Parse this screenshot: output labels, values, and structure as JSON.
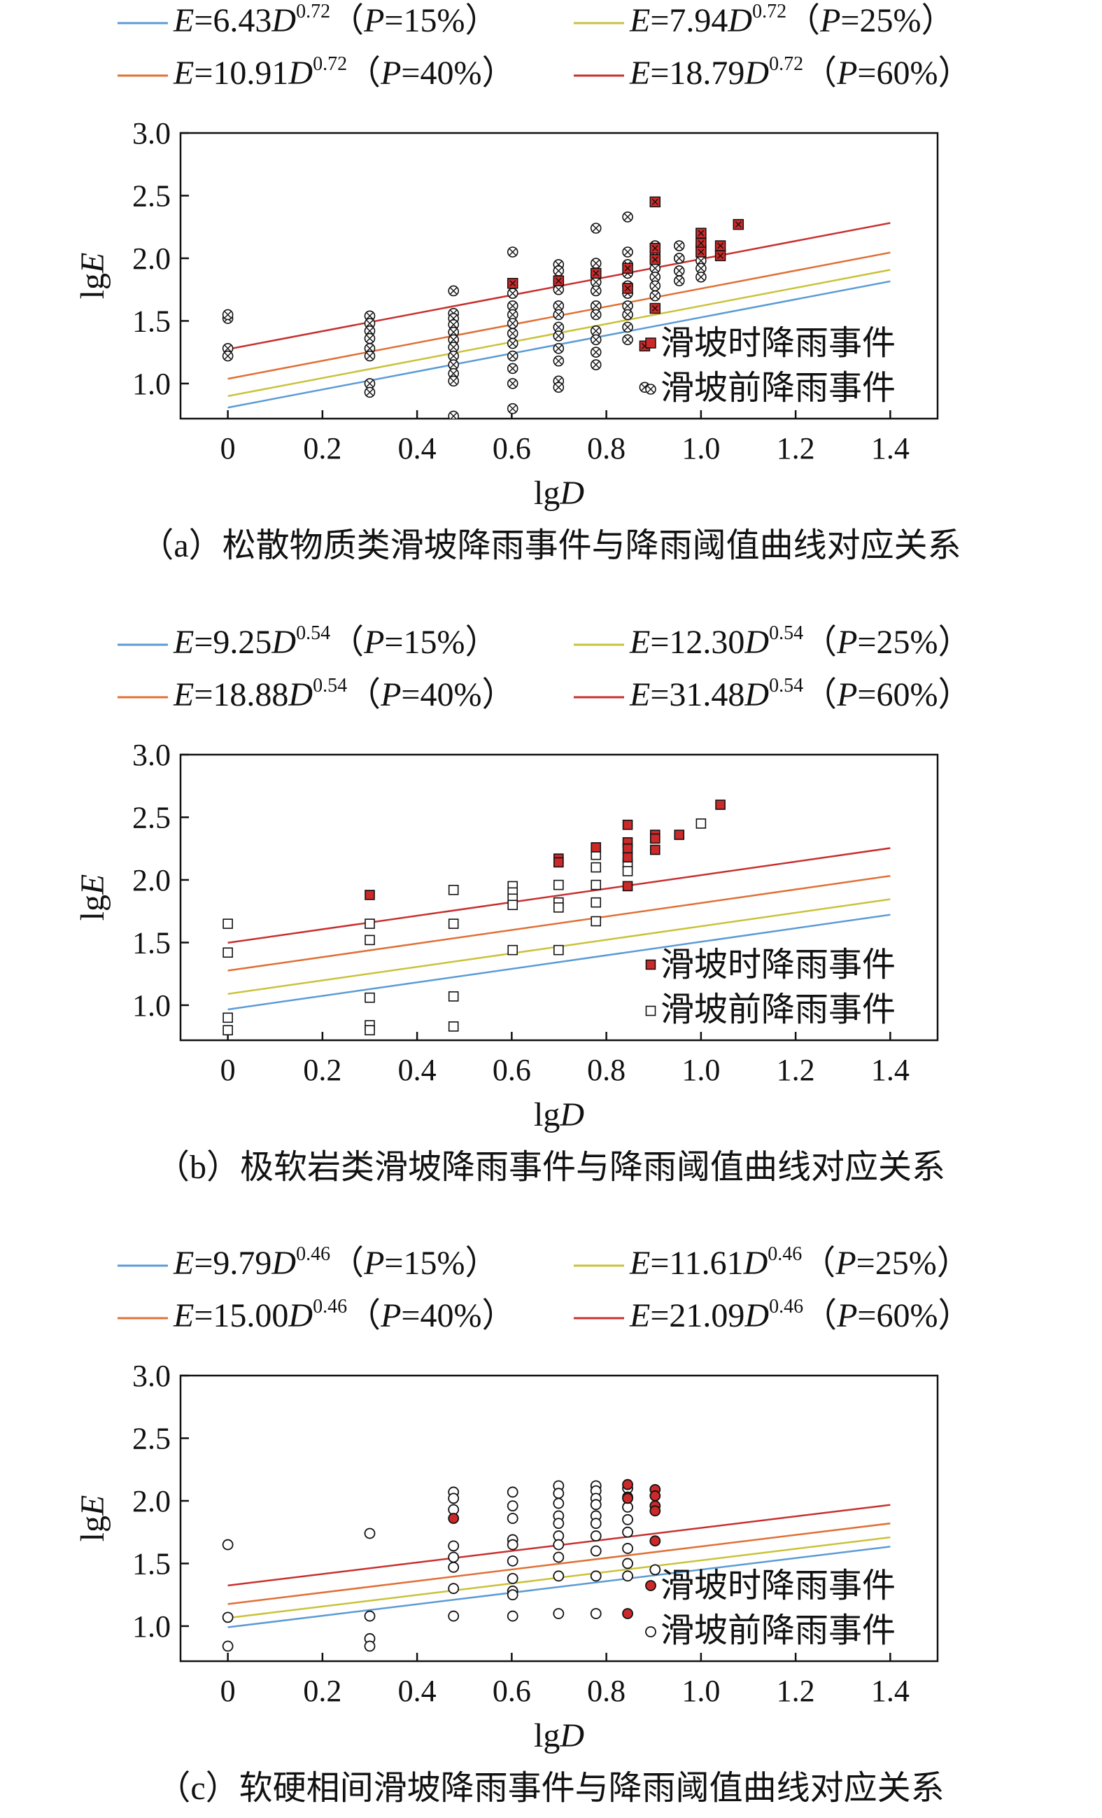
{
  "colors": {
    "p15": "#5b9bd5",
    "p25": "#c9c23a",
    "p40": "#e07035",
    "p60": "#c8302f",
    "during_fill": "#cc2a2a",
    "axis": "#111111"
  },
  "axes": {
    "xlabel_pre": "lg",
    "xlabel_var": "D",
    "ylabel_pre": "lg",
    "ylabel_var": "E"
  },
  "legend_points": {
    "during": "滑坡时降雨事件",
    "before": "滑坡前降雨事件"
  },
  "chart_data": [
    {
      "id": "a",
      "type": "scatter",
      "marker": "x-square",
      "caption": "（a）松散物质类滑坡降雨事件与降雨阈值曲线对应关系",
      "xlim": [
        -0.1,
        1.5
      ],
      "ylim": [
        0.72,
        3.0
      ],
      "x_ticks": [
        "0",
        "0.2",
        "0.4",
        "0.6",
        "0.8",
        "1.0",
        "1.2",
        "1.4"
      ],
      "y_ticks": [
        "1.0",
        "1.5",
        "2.0",
        "2.5",
        "3.0"
      ],
      "thresholds": [
        {
          "a_text": "6.43",
          "b_text": "0.72",
          "p": "15%",
          "color_key": "p15",
          "a": 6.43,
          "b": 0.72
        },
        {
          "a_text": "7.94",
          "b_text": "0.72",
          "p": "25%",
          "color_key": "p25",
          "a": 7.94,
          "b": 0.72
        },
        {
          "a_text": "10.91",
          "b_text": "0.72",
          "p": "40%",
          "color_key": "p40",
          "a": 10.91,
          "b": 0.72
        },
        {
          "a_text": "18.79",
          "b_text": "0.72",
          "p": "60%",
          "color_key": "p60",
          "a": 18.79,
          "b": 0.72
        }
      ],
      "before": [
        [
          0,
          1.52
        ],
        [
          0,
          1.55
        ],
        [
          0,
          1.28
        ],
        [
          0,
          1.22
        ],
        [
          0.3,
          1.54
        ],
        [
          0.3,
          1.48
        ],
        [
          0.3,
          1.42
        ],
        [
          0.3,
          1.36
        ],
        [
          0.3,
          1.28
        ],
        [
          0.3,
          1.22
        ],
        [
          0.3,
          1.0
        ],
        [
          0.3,
          0.93
        ],
        [
          0.477,
          1.74
        ],
        [
          0.477,
          1.56
        ],
        [
          0.477,
          1.52
        ],
        [
          0.477,
          1.47
        ],
        [
          0.477,
          1.41
        ],
        [
          0.477,
          1.35
        ],
        [
          0.477,
          1.29
        ],
        [
          0.477,
          1.22
        ],
        [
          0.477,
          1.15
        ],
        [
          0.477,
          1.08
        ],
        [
          0.477,
          1.02
        ],
        [
          0.477,
          0.74
        ],
        [
          0.602,
          2.05
        ],
        [
          0.602,
          1.72
        ],
        [
          0.602,
          1.62
        ],
        [
          0.602,
          1.55
        ],
        [
          0.602,
          1.48
        ],
        [
          0.602,
          1.4
        ],
        [
          0.602,
          1.32
        ],
        [
          0.602,
          1.22
        ],
        [
          0.602,
          1.12
        ],
        [
          0.602,
          1.0
        ],
        [
          0.602,
          0.8
        ],
        [
          0.699,
          1.95
        ],
        [
          0.699,
          1.9
        ],
        [
          0.699,
          1.82
        ],
        [
          0.699,
          1.75
        ],
        [
          0.699,
          1.62
        ],
        [
          0.699,
          1.55
        ],
        [
          0.699,
          1.45
        ],
        [
          0.699,
          1.38
        ],
        [
          0.699,
          1.28
        ],
        [
          0.699,
          1.18
        ],
        [
          0.699,
          1.02
        ],
        [
          0.699,
          0.97
        ],
        [
          0.778,
          2.24
        ],
        [
          0.778,
          1.96
        ],
        [
          0.778,
          1.88
        ],
        [
          0.778,
          1.81
        ],
        [
          0.778,
          1.74
        ],
        [
          0.778,
          1.62
        ],
        [
          0.778,
          1.55
        ],
        [
          0.778,
          1.42
        ],
        [
          0.778,
          1.35
        ],
        [
          0.778,
          1.25
        ],
        [
          0.778,
          1.15
        ],
        [
          0.845,
          2.33
        ],
        [
          0.845,
          2.05
        ],
        [
          0.845,
          1.95
        ],
        [
          0.845,
          1.88
        ],
        [
          0.845,
          1.78
        ],
        [
          0.845,
          1.72
        ],
        [
          0.845,
          1.62
        ],
        [
          0.845,
          1.55
        ],
        [
          0.845,
          1.45
        ],
        [
          0.845,
          1.35
        ],
        [
          0.881,
          0.97
        ],
        [
          0.903,
          2.1
        ],
        [
          0.903,
          2.05
        ],
        [
          0.903,
          1.98
        ],
        [
          0.903,
          1.92
        ],
        [
          0.903,
          1.85
        ],
        [
          0.903,
          1.78
        ],
        [
          0.903,
          1.7
        ],
        [
          0.954,
          2.1
        ],
        [
          0.954,
          2.0
        ],
        [
          0.954,
          1.9
        ],
        [
          0.954,
          1.82
        ],
        [
          1.0,
          2.1
        ],
        [
          1.0,
          1.98
        ],
        [
          1.0,
          1.92
        ],
        [
          1.0,
          1.85
        ]
      ],
      "during": [
        [
          0.602,
          1.8
        ],
        [
          0.699,
          1.82
        ],
        [
          0.778,
          1.88
        ],
        [
          0.845,
          1.92
        ],
        [
          0.845,
          1.76
        ],
        [
          0.881,
          1.3
        ],
        [
          0.903,
          2.45
        ],
        [
          0.903,
          2.08
        ],
        [
          0.903,
          1.99
        ],
        [
          0.903,
          1.6
        ],
        [
          1.0,
          2.2
        ],
        [
          1.0,
          2.12
        ],
        [
          1.0,
          2.05
        ],
        [
          1.041,
          2.1
        ],
        [
          1.041,
          2.02
        ],
        [
          1.079,
          2.27
        ]
      ]
    },
    {
      "id": "b",
      "type": "scatter",
      "marker": "square",
      "caption": "（b）极软岩类滑坡降雨事件与降雨阈值曲线对应关系",
      "xlim": [
        -0.1,
        1.5
      ],
      "ylim": [
        0.72,
        3.0
      ],
      "x_ticks": [
        "0",
        "0.2",
        "0.4",
        "0.6",
        "0.8",
        "1.0",
        "1.2",
        "1.4"
      ],
      "y_ticks": [
        "1.0",
        "1.5",
        "2.0",
        "2.5",
        "3.0"
      ],
      "thresholds": [
        {
          "a_text": "9.25",
          "b_text": "0.54",
          "p": "15%",
          "color_key": "p15",
          "a": 9.25,
          "b": 0.54
        },
        {
          "a_text": "12.30",
          "b_text": "0.54",
          "p": "25%",
          "color_key": "p25",
          "a": 12.3,
          "b": 0.54
        },
        {
          "a_text": "18.88",
          "b_text": "0.54",
          "p": "40%",
          "color_key": "p40",
          "a": 18.88,
          "b": 0.54
        },
        {
          "a_text": "31.48",
          "b_text": "0.54",
          "p": "60%",
          "color_key": "p60",
          "a": 31.48,
          "b": 0.54
        }
      ],
      "before": [
        [
          0,
          1.65
        ],
        [
          0,
          1.42
        ],
        [
          0,
          0.9
        ],
        [
          0,
          0.8
        ],
        [
          0.3,
          1.65
        ],
        [
          0.3,
          1.52
        ],
        [
          0.3,
          1.06
        ],
        [
          0.3,
          0.84
        ],
        [
          0.3,
          0.8
        ],
        [
          0.477,
          1.92
        ],
        [
          0.477,
          1.65
        ],
        [
          0.477,
          1.07
        ],
        [
          0.477,
          0.83
        ],
        [
          0.602,
          1.95
        ],
        [
          0.602,
          1.9
        ],
        [
          0.602,
          1.85
        ],
        [
          0.602,
          1.8
        ],
        [
          0.602,
          1.44
        ],
        [
          0.699,
          1.96
        ],
        [
          0.699,
          1.82
        ],
        [
          0.699,
          1.78
        ],
        [
          0.699,
          1.44
        ],
        [
          0.778,
          2.2
        ],
        [
          0.778,
          2.1
        ],
        [
          0.778,
          1.96
        ],
        [
          0.778,
          1.82
        ],
        [
          0.778,
          1.67
        ],
        [
          0.845,
          2.13
        ],
        [
          0.845,
          2.07
        ],
        [
          1.0,
          2.45
        ]
      ],
      "during": [
        [
          0.3,
          1.88
        ],
        [
          0.699,
          2.17
        ],
        [
          0.699,
          2.14
        ],
        [
          0.778,
          2.26
        ],
        [
          0.845,
          2.44
        ],
        [
          0.845,
          2.3
        ],
        [
          0.845,
          2.25
        ],
        [
          0.845,
          2.18
        ],
        [
          0.845,
          1.95
        ],
        [
          0.903,
          2.36
        ],
        [
          0.903,
          2.33
        ],
        [
          0.903,
          2.24
        ],
        [
          0.954,
          2.36
        ],
        [
          1.041,
          2.6
        ]
      ]
    },
    {
      "id": "c",
      "type": "scatter",
      "marker": "circle",
      "caption": "（c）软硬相间滑坡降雨事件与降雨阈值曲线对应关系",
      "xlim": [
        -0.1,
        1.5
      ],
      "ylim": [
        0.72,
        3.0
      ],
      "x_ticks": [
        "0",
        "0.2",
        "0.4",
        "0.6",
        "0.8",
        "1.0",
        "1.2",
        "1.4"
      ],
      "y_ticks": [
        "1.0",
        "1.5",
        "2.0",
        "2.5",
        "3.0"
      ],
      "thresholds": [
        {
          "a_text": "9.79",
          "b_text": "0.46",
          "p": "15%",
          "color_key": "p15",
          "a": 9.79,
          "b": 0.46
        },
        {
          "a_text": "11.61",
          "b_text": "0.46",
          "p": "25%",
          "color_key": "p25",
          "a": 11.61,
          "b": 0.46
        },
        {
          "a_text": "15.00",
          "b_text": "0.46",
          "p": "40%",
          "color_key": "p40",
          "a": 15.0,
          "b": 0.46
        },
        {
          "a_text": "21.09",
          "b_text": "0.46",
          "p": "60%",
          "color_key": "p60",
          "a": 21.09,
          "b": 0.46
        }
      ],
      "before": [
        [
          0,
          1.65
        ],
        [
          0,
          1.07
        ],
        [
          0,
          0.84
        ],
        [
          0.3,
          1.74
        ],
        [
          0.3,
          1.08
        ],
        [
          0.3,
          0.9
        ],
        [
          0.3,
          0.84
        ],
        [
          0.477,
          2.07
        ],
        [
          0.477,
          2.02
        ],
        [
          0.477,
          1.93
        ],
        [
          0.477,
          1.64
        ],
        [
          0.477,
          1.55
        ],
        [
          0.477,
          1.47
        ],
        [
          0.477,
          1.3
        ],
        [
          0.477,
          1.08
        ],
        [
          0.602,
          2.07
        ],
        [
          0.602,
          1.96
        ],
        [
          0.602,
          1.86
        ],
        [
          0.602,
          1.69
        ],
        [
          0.602,
          1.65
        ],
        [
          0.602,
          1.52
        ],
        [
          0.602,
          1.38
        ],
        [
          0.602,
          1.28
        ],
        [
          0.602,
          1.25
        ],
        [
          0.602,
          1.08
        ],
        [
          0.699,
          2.12
        ],
        [
          0.699,
          2.06
        ],
        [
          0.699,
          1.98
        ],
        [
          0.699,
          1.88
        ],
        [
          0.699,
          1.82
        ],
        [
          0.699,
          1.72
        ],
        [
          0.699,
          1.65
        ],
        [
          0.699,
          1.55
        ],
        [
          0.699,
          1.4
        ],
        [
          0.699,
          1.1
        ],
        [
          0.778,
          2.12
        ],
        [
          0.778,
          2.08
        ],
        [
          0.778,
          2.02
        ],
        [
          0.778,
          1.97
        ],
        [
          0.778,
          1.88
        ],
        [
          0.778,
          1.82
        ],
        [
          0.778,
          1.72
        ],
        [
          0.778,
          1.6
        ],
        [
          0.778,
          1.4
        ],
        [
          0.778,
          1.1
        ],
        [
          0.845,
          2.1
        ],
        [
          0.845,
          2.03
        ],
        [
          0.845,
          1.95
        ],
        [
          0.845,
          1.85
        ],
        [
          0.845,
          1.75
        ],
        [
          0.845,
          1.62
        ],
        [
          0.845,
          1.5
        ],
        [
          0.845,
          1.4
        ],
        [
          0.903,
          1.45
        ]
      ],
      "during": [
        [
          0.477,
          1.86
        ],
        [
          0.845,
          2.13
        ],
        [
          0.845,
          2.02
        ],
        [
          0.845,
          1.1
        ],
        [
          0.903,
          2.09
        ],
        [
          0.903,
          2.04
        ],
        [
          0.903,
          1.96
        ],
        [
          0.903,
          1.92
        ],
        [
          0.903,
          1.68
        ]
      ]
    }
  ]
}
